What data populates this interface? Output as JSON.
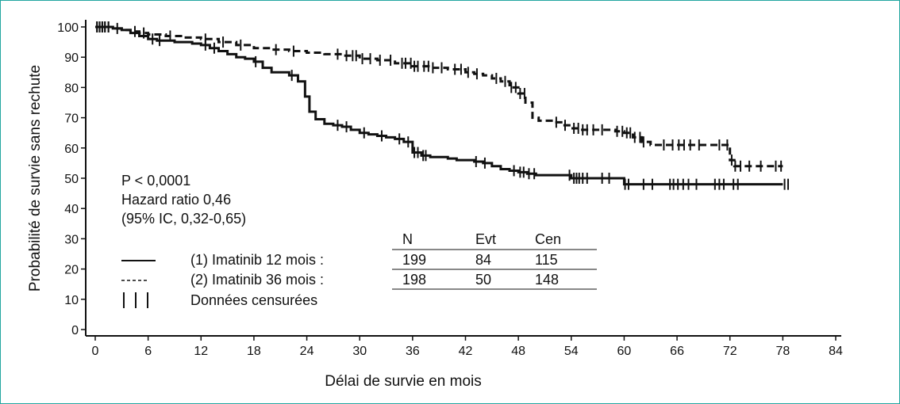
{
  "chart_data": {
    "type": "line",
    "xlabel": "Délai de survie en mois",
    "ylabel": "Probabilité de survie sans rechute",
    "xlim": [
      0,
      84
    ],
    "ylim": [
      0,
      100
    ],
    "xticks": [
      "0",
      "6",
      "12",
      "18",
      "24",
      "30",
      "36",
      "42",
      "48",
      "54",
      "60",
      "66",
      "72",
      "78",
      "84"
    ],
    "yticks": [
      "0",
      "10",
      "20",
      "30",
      "40",
      "50",
      "60",
      "70",
      "80",
      "90",
      "100"
    ],
    "stats": [
      "P < 0,0001",
      "Hazard ratio 0,46",
      "(95% IC, 0,32-0,65)"
    ],
    "table": {
      "headers": [
        "N",
        "Evt",
        "Cen"
      ],
      "rows": [
        {
          "label": "(1) Imatinib 12 mois :",
          "style": "solid",
          "values": [
            "199",
            "84",
            "115"
          ]
        },
        {
          "label": "(2) Imatinib 36 mois :",
          "style": "dashed",
          "values": [
            "198",
            "50",
            "148"
          ]
        }
      ],
      "censor_label": "Données censurées"
    },
    "series": [
      {
        "name": "(1) Imatinib 12 mois",
        "style": "solid",
        "color": "#111111",
        "points": [
          [
            0,
            100
          ],
          [
            2,
            99.5
          ],
          [
            3,
            99
          ],
          [
            4,
            98
          ],
          [
            5,
            97
          ],
          [
            6,
            96
          ],
          [
            7,
            95.5
          ],
          [
            9,
            95
          ],
          [
            11,
            94.5
          ],
          [
            12,
            94
          ],
          [
            13,
            93
          ],
          [
            14,
            92
          ],
          [
            15,
            91
          ],
          [
            16,
            90
          ],
          [
            17,
            89.5
          ],
          [
            18,
            88.5
          ],
          [
            19,
            86.5
          ],
          [
            20,
            85
          ],
          [
            21,
            85
          ],
          [
            22,
            84
          ],
          [
            23,
            82
          ],
          [
            23.8,
            77
          ],
          [
            24.3,
            72
          ],
          [
            25,
            69.5
          ],
          [
            26,
            68
          ],
          [
            27,
            67.5
          ],
          [
            28,
            67
          ],
          [
            29,
            66
          ],
          [
            30,
            65
          ],
          [
            31,
            64.5
          ],
          [
            32,
            64
          ],
          [
            33,
            63.5
          ],
          [
            34,
            63
          ],
          [
            35,
            62
          ],
          [
            36,
            58.5
          ],
          [
            37,
            57.5
          ],
          [
            38,
            57
          ],
          [
            39,
            57
          ],
          [
            40,
            56.5
          ],
          [
            41,
            56
          ],
          [
            42,
            56
          ],
          [
            43,
            55.5
          ],
          [
            44,
            55
          ],
          [
            45,
            54
          ],
          [
            46,
            53
          ],
          [
            47,
            52.5
          ],
          [
            48,
            52
          ],
          [
            49,
            51.5
          ],
          [
            50,
            51
          ],
          [
            52,
            51
          ],
          [
            54,
            50
          ],
          [
            56,
            50
          ],
          [
            58,
            50
          ],
          [
            60,
            48
          ],
          [
            62,
            48
          ],
          [
            64,
            48
          ],
          [
            66,
            48
          ],
          [
            68,
            48
          ],
          [
            70,
            48
          ],
          [
            72,
            48
          ],
          [
            74,
            48
          ],
          [
            76,
            48
          ],
          [
            78,
            48
          ]
        ],
        "censored_x": [
          0.2,
          0.5,
          0.8,
          1.1,
          1.5,
          6.5,
          7.3,
          12.5,
          13.5,
          18.2,
          22.3,
          27.5,
          28.5,
          30.5,
          32.5,
          34.5,
          35.5,
          36.2,
          36.6,
          37.2,
          37.5,
          43.2,
          44.2,
          47.5,
          48.2,
          48.6,
          49.2,
          49.8,
          53.8,
          54.3,
          54.6,
          54.9,
          55.3,
          55.8,
          57.5,
          58.3,
          60.1,
          60.5,
          62.2,
          63.2,
          65.2,
          65.6,
          66.1,
          66.7,
          67.3,
          68.2,
          70.3,
          70.8,
          71.3,
          72.4,
          72.9,
          78.2,
          78.6
        ]
      },
      {
        "name": "(2) Imatinib 36 mois",
        "style": "dashed",
        "color": "#111111",
        "points": [
          [
            0,
            100
          ],
          [
            2,
            99.5
          ],
          [
            3,
            99
          ],
          [
            4,
            98.5
          ],
          [
            5,
            98
          ],
          [
            6,
            97.5
          ],
          [
            8,
            97
          ],
          [
            10,
            96.5
          ],
          [
            12,
            96
          ],
          [
            14,
            95
          ],
          [
            16,
            94
          ],
          [
            18,
            93
          ],
          [
            20,
            92.5
          ],
          [
            22,
            92
          ],
          [
            24,
            91.5
          ],
          [
            26,
            91
          ],
          [
            28,
            90.5
          ],
          [
            30,
            89.5
          ],
          [
            32,
            89
          ],
          [
            34,
            88
          ],
          [
            36,
            87
          ],
          [
            38,
            86.5
          ],
          [
            40,
            86
          ],
          [
            42,
            85
          ],
          [
            43,
            84.5
          ],
          [
            44,
            84
          ],
          [
            45,
            83
          ],
          [
            46,
            82
          ],
          [
            47,
            80
          ],
          [
            48,
            78
          ],
          [
            48.8,
            75
          ],
          [
            49.6,
            70
          ],
          [
            50.3,
            69
          ],
          [
            52,
            68.5
          ],
          [
            53,
            67.5
          ],
          [
            54,
            66.5
          ],
          [
            55,
            66
          ],
          [
            56,
            66
          ],
          [
            58,
            66
          ],
          [
            59,
            65.5
          ],
          [
            60,
            65
          ],
          [
            61,
            63.5
          ],
          [
            62,
            62
          ],
          [
            63,
            61
          ],
          [
            64,
            61
          ],
          [
            65,
            61
          ],
          [
            66,
            61
          ],
          [
            68,
            61
          ],
          [
            70,
            61
          ],
          [
            71.5,
            61
          ],
          [
            72,
            56
          ],
          [
            72.5,
            54
          ],
          [
            74,
            54
          ],
          [
            76,
            54
          ],
          [
            78,
            54
          ]
        ],
        "censored_x": [
          0.2,
          0.5,
          0.8,
          1.1,
          1.5,
          2.5,
          4.5,
          5.5,
          8.5,
          12.5,
          14.5,
          16.5,
          20.5,
          22.5,
          27.5,
          28.5,
          29.2,
          29.6,
          30.3,
          31.2,
          32.3,
          33.5,
          34.8,
          35.2,
          35.8,
          36.2,
          36.6,
          37.3,
          37.8,
          38.3,
          39.3,
          40.8,
          41.5,
          42.3,
          43.3,
          45.5,
          46.5,
          47.2,
          47.7,
          48.2,
          48.7,
          52.3,
          53.3,
          54.3,
          54.8,
          55.3,
          55.8,
          56.5,
          57.5,
          59.2,
          59.8,
          60.3,
          60.7,
          61.2,
          61.8,
          62.2,
          64.5,
          65.5,
          66.2,
          66.8,
          67.5,
          68.5,
          70.8,
          71.7,
          72.2,
          72.6,
          73.2,
          74.2,
          75.5,
          77.2,
          77.8
        ]
      }
    ]
  }
}
